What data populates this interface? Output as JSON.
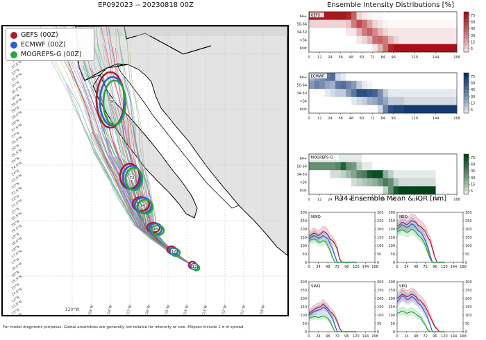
{
  "map": {
    "title": "EP092023 -- 20230818 00Z",
    "footnote": "For model diagnostic purposes. Global ensembles are generally not reliable for intensity or size. Ellipses include 1 σ of spread.",
    "legend": [
      {
        "label": "GEFS (00Z)",
        "color": "#b2182b"
      },
      {
        "label": "ECMWF (00Z)",
        "color": "#2c5fd6"
      },
      {
        "label": "MOGREPS-G (00Z)",
        "color": "#21a838"
      }
    ],
    "lat_labels": [
      "33°N",
      "32.5°N",
      "32°N",
      "31.5°N",
      "31°N",
      "30.5°N",
      "30°N",
      "29.5°N",
      "29°N",
      "28.5°N",
      "28°N",
      "27.5°N",
      "27°N",
      "26.5°N",
      "26°N",
      "25.5°N",
      "25°N",
      "24.5°N",
      "24°N",
      "23.5°N",
      "23°N",
      "22.5°N",
      "22°N",
      "21.5°N",
      "21°N",
      "20.5°N",
      "20°N",
      "19.5°N",
      "19°N",
      "18.5°N",
      "18°N",
      "17.5°N",
      "17°N",
      "16.5°N",
      "16°N",
      "15.5°N",
      "15°N",
      "14.5°N",
      "14°N",
      "13.5°N",
      "13°N",
      "12.5°N"
    ],
    "lon_labels": [
      "120°W",
      "119°W",
      "118°W",
      "117°W",
      "116°W",
      "115°W",
      "114°W",
      "113°W",
      "112°W",
      "111°W",
      "110°W"
    ],
    "ellipse_labels": [
      "12",
      "36",
      "48",
      "60",
      "72",
      "96"
    ]
  },
  "intensity": {
    "title": "Ensemble Intensity Distributions [%]",
    "row_labels": [
      "64+",
      "50-64",
      "34-50",
      "<34",
      "kost"
    ],
    "x_ticks": [
      "0",
      "12",
      "24",
      "36",
      "48",
      "60",
      "72",
      "84",
      "96",
      "120",
      "144",
      "168"
    ],
    "colorbar_ticks": [
      "75",
      "60",
      "45",
      "30",
      "15",
      "5"
    ],
    "panels": [
      {
        "name": "GEFS",
        "color": "#a50f15"
      },
      {
        "name": "ECMWF",
        "color": "#08306b"
      },
      {
        "name": "MOGREPS-G",
        "color": "#00441b"
      }
    ]
  },
  "r34": {
    "title": "R34 Ensemble Mean & IQR [nm]",
    "quadrants": [
      "NWQ",
      "NEQ",
      "SWQ",
      "SEQ"
    ],
    "x_ticks": [
      "0",
      "24",
      "48",
      "72",
      "96",
      "120",
      "144",
      "168"
    ],
    "y_ticks": [
      "0",
      "50",
      "100",
      "150",
      "200",
      "250",
      "300"
    ]
  },
  "chart_data": [
    {
      "type": "heatmap",
      "title": "GEFS",
      "x": [
        0,
        6,
        12,
        18,
        24,
        30,
        36,
        42,
        48,
        54,
        60,
        66,
        72,
        78,
        84,
        90,
        96,
        102,
        108,
        114,
        120,
        126,
        132,
        138,
        144,
        150,
        156,
        162,
        168
      ],
      "rows": [
        "64+",
        "50-64",
        "34-50",
        "<34",
        "kost"
      ],
      "values": [
        [
          80,
          80,
          80,
          80,
          80,
          80,
          80,
          75,
          50,
          10,
          5,
          2,
          1,
          1,
          0,
          0,
          0,
          0,
          0,
          0,
          0,
          0,
          0,
          0,
          0,
          0,
          0,
          0,
          0
        ],
        [
          10,
          10,
          10,
          10,
          10,
          10,
          10,
          15,
          40,
          60,
          45,
          25,
          10,
          5,
          2,
          1,
          1,
          1,
          1,
          1,
          1,
          1,
          1,
          1,
          1,
          1,
          1,
          1,
          1
        ],
        [
          0,
          0,
          0,
          0,
          0,
          0,
          0,
          5,
          5,
          20,
          40,
          50,
          35,
          20,
          10,
          5,
          5,
          5,
          5,
          5,
          5,
          5,
          5,
          5,
          5,
          5,
          5,
          5,
          5
        ],
        [
          0,
          0,
          0,
          0,
          0,
          0,
          0,
          0,
          0,
          5,
          10,
          20,
          45,
          50,
          40,
          20,
          10,
          5,
          5,
          5,
          5,
          5,
          5,
          5,
          5,
          5,
          5,
          5,
          5
        ],
        [
          0,
          0,
          0,
          0,
          0,
          0,
          0,
          0,
          0,
          0,
          0,
          0,
          5,
          20,
          45,
          75,
          85,
          90,
          90,
          90,
          90,
          90,
          90,
          90,
          90,
          90,
          90,
          90,
          90
        ]
      ],
      "colorbar": [
        5,
        15,
        30,
        45,
        60,
        75
      ]
    },
    {
      "type": "heatmap",
      "title": "ECMWF",
      "x": [
        0,
        6,
        12,
        18,
        24,
        30,
        36,
        42,
        48,
        54,
        60,
        66,
        72,
        78,
        84,
        90,
        96,
        102,
        108,
        114,
        120,
        126,
        132,
        138,
        144,
        150,
        156,
        162,
        168
      ],
      "rows": [
        "64+",
        "50-64",
        "34-50",
        "<34",
        "kost"
      ],
      "values": [
        [
          25,
          35,
          40,
          50,
          55,
          10,
          5,
          0,
          0,
          0,
          0,
          0,
          0,
          0,
          0,
          0,
          0,
          0,
          0,
          0,
          0,
          0,
          0,
          0,
          0,
          0,
          0,
          0,
          0
        ],
        [
          35,
          45,
          40,
          30,
          25,
          50,
          55,
          45,
          35,
          15,
          5,
          2,
          0,
          0,
          0,
          0,
          0,
          0,
          0,
          0,
          0,
          0,
          0,
          0,
          0,
          0,
          0,
          0,
          0
        ],
        [
          0,
          0,
          0,
          5,
          10,
          15,
          15,
          35,
          50,
          70,
          70,
          65,
          60,
          40,
          15,
          5,
          5,
          5,
          5,
          5,
          5,
          5,
          5,
          5,
          5,
          5,
          5,
          5,
          0
        ],
        [
          0,
          0,
          0,
          0,
          0,
          0,
          0,
          0,
          5,
          10,
          15,
          25,
          30,
          40,
          30,
          15,
          15,
          15,
          10,
          10,
          10,
          10,
          10,
          10,
          10,
          10,
          10,
          10,
          0
        ],
        [
          0,
          0,
          0,
          0,
          0,
          0,
          0,
          0,
          0,
          0,
          0,
          0,
          0,
          10,
          45,
          70,
          75,
          75,
          80,
          80,
          80,
          80,
          80,
          80,
          80,
          80,
          80,
          80,
          0
        ]
      ],
      "colorbar": [
        5,
        15,
        30,
        45,
        60,
        75
      ]
    },
    {
      "type": "heatmap",
      "title": "MOGREPS-G",
      "x": [
        0,
        6,
        12,
        18,
        24,
        30,
        36,
        42,
        48,
        54,
        60,
        66,
        72,
        78,
        84,
        90,
        96,
        102,
        108,
        114,
        120,
        126,
        132,
        138,
        144,
        150,
        156,
        162,
        168
      ],
      "rows": [
        "64+",
        "50-64",
        "34-50",
        "<34",
        "kost"
      ],
      "values": [
        [
          5,
          5,
          5,
          5,
          5,
          5,
          5,
          5,
          5,
          5,
          0,
          0,
          0,
          0,
          0,
          0,
          0,
          0,
          0,
          0,
          0,
          0,
          0,
          0,
          0,
          0,
          0,
          0,
          0
        ],
        [
          45,
          45,
          45,
          45,
          45,
          50,
          70,
          45,
          40,
          15,
          5,
          5,
          0,
          0,
          0,
          0,
          0,
          0,
          0,
          0,
          0,
          0,
          0,
          0,
          0,
          0,
          0,
          0,
          0
        ],
        [
          0,
          0,
          0,
          0,
          10,
          10,
          15,
          25,
          35,
          50,
          55,
          75,
          80,
          80,
          30,
          15,
          5,
          5,
          5,
          5,
          5,
          5,
          5,
          5,
          0,
          0,
          0,
          0,
          0
        ],
        [
          0,
          0,
          0,
          0,
          0,
          0,
          0,
          0,
          10,
          15,
          20,
          25,
          30,
          40,
          55,
          45,
          20,
          10,
          10,
          10,
          10,
          10,
          10,
          10,
          0,
          0,
          0,
          0,
          0
        ],
        [
          0,
          0,
          0,
          0,
          0,
          0,
          0,
          0,
          0,
          0,
          0,
          0,
          0,
          0,
          15,
          45,
          75,
          85,
          85,
          85,
          85,
          85,
          85,
          85,
          0,
          0,
          0,
          0,
          0
        ]
      ],
      "colorbar": [
        5,
        15,
        30,
        45,
        60,
        75
      ]
    },
    {
      "type": "line",
      "title": "NWQ",
      "x": [
        0,
        6,
        12,
        18,
        24,
        30,
        36,
        42,
        48,
        54,
        60,
        66,
        72,
        78,
        84,
        90,
        96,
        102,
        108,
        114,
        120
      ],
      "ylim": [
        0,
        300
      ],
      "xlim": [
        0,
        168
      ],
      "series": [
        {
          "name": "GEFS",
          "values": [
            155,
            165,
            175,
            170,
            160,
            170,
            185,
            180,
            165,
            140,
            130,
            110,
            80,
            20,
            0,
            0,
            0,
            0,
            0,
            0,
            0
          ]
        },
        {
          "name": "ECMWF",
          "values": [
            140,
            150,
            160,
            155,
            145,
            150,
            160,
            150,
            140,
            110,
            80,
            40,
            0,
            0,
            0,
            0,
            0,
            0,
            0,
            0,
            0
          ]
        },
        {
          "name": "MOGREPS-G",
          "values": [
            130,
            135,
            140,
            135,
            120,
            120,
            130,
            125,
            100,
            70,
            30,
            0,
            0,
            0,
            0,
            0,
            0,
            0,
            0,
            0,
            0
          ]
        }
      ]
    },
    {
      "type": "line",
      "title": "NEQ",
      "x": [
        0,
        6,
        12,
        18,
        24,
        30,
        36,
        42,
        48,
        54,
        60,
        66,
        72,
        78,
        84,
        90,
        96,
        102,
        108,
        114,
        120
      ],
      "ylim": [
        0,
        300
      ],
      "xlim": [
        0,
        168
      ],
      "series": [
        {
          "name": "GEFS",
          "values": [
            215,
            225,
            240,
            235,
            225,
            235,
            250,
            245,
            240,
            220,
            215,
            200,
            185,
            150,
            130,
            80,
            30,
            0,
            0,
            0,
            0
          ]
        },
        {
          "name": "ECMWF",
          "values": [
            200,
            210,
            225,
            220,
            210,
            215,
            230,
            225,
            210,
            190,
            180,
            160,
            130,
            90,
            40,
            0,
            0,
            0,
            0,
            0,
            0
          ]
        },
        {
          "name": "MOGREPS-G",
          "values": [
            185,
            190,
            195,
            190,
            180,
            185,
            200,
            195,
            180,
            160,
            150,
            130,
            100,
            60,
            20,
            0,
            0,
            0,
            0,
            0,
            0
          ]
        }
      ]
    },
    {
      "type": "line",
      "title": "SWQ",
      "x": [
        0,
        6,
        12,
        18,
        24,
        30,
        36,
        42,
        48,
        54,
        60,
        66,
        72,
        78,
        84,
        90,
        96,
        102,
        108,
        114,
        120
      ],
      "ylim": [
        0,
        300
      ],
      "xlim": [
        0,
        168
      ],
      "series": [
        {
          "name": "GEFS",
          "values": [
            110,
            120,
            130,
            140,
            145,
            150,
            165,
            150,
            140,
            120,
            110,
            90,
            60,
            20,
            0,
            0,
            0,
            0,
            0,
            0,
            0
          ]
        },
        {
          "name": "ECMWF",
          "values": [
            100,
            110,
            120,
            125,
            130,
            135,
            145,
            140,
            125,
            100,
            80,
            40,
            0,
            0,
            0,
            0,
            0,
            0,
            0,
            0,
            0
          ]
        },
        {
          "name": "MOGREPS-G",
          "values": [
            80,
            85,
            90,
            90,
            85,
            90,
            95,
            90,
            80,
            60,
            30,
            0,
            0,
            0,
            0,
            0,
            0,
            0,
            0,
            0,
            0
          ]
        }
      ]
    },
    {
      "type": "line",
      "title": "SEQ",
      "x": [
        0,
        6,
        12,
        18,
        24,
        30,
        36,
        42,
        48,
        54,
        60,
        66,
        72,
        78,
        84,
        90,
        96,
        102,
        108,
        114,
        120
      ],
      "ylim": [
        0,
        300
      ],
      "xlim": [
        0,
        168
      ],
      "series": [
        {
          "name": "GEFS",
          "values": [
            200,
            210,
            225,
            220,
            210,
            215,
            225,
            220,
            210,
            190,
            185,
            170,
            150,
            120,
            90,
            60,
            30,
            15,
            0,
            0,
            0
          ]
        },
        {
          "name": "ECMWF",
          "values": [
            180,
            195,
            215,
            210,
            195,
            195,
            210,
            205,
            190,
            170,
            160,
            135,
            110,
            80,
            40,
            0,
            0,
            0,
            0,
            0,
            0
          ]
        },
        {
          "name": "MOGREPS-G",
          "values": [
            110,
            115,
            125,
            120,
            110,
            115,
            120,
            115,
            105,
            95,
            85,
            60,
            40,
            10,
            0,
            0,
            0,
            0,
            0,
            0,
            0
          ]
        }
      ]
    }
  ]
}
